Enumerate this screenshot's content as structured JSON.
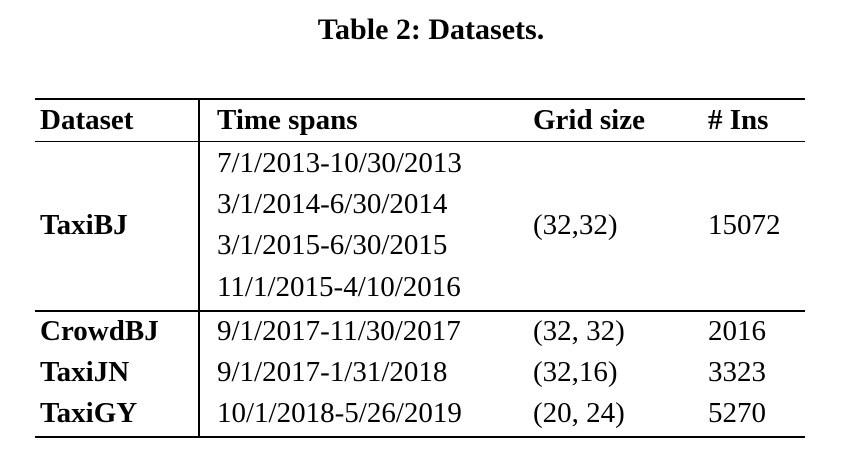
{
  "caption": "Table 2: Datasets.",
  "headers": {
    "dataset": "Dataset",
    "time_spans": "Time spans",
    "grid_size": "Grid size",
    "ins": "# Ins"
  },
  "rows": [
    {
      "dataset": "TaxiBJ",
      "time_spans": [
        "7/1/2013-10/30/2013",
        "3/1/2014-6/30/2014",
        "3/1/2015-6/30/2015",
        "11/1/2015-4/10/2016"
      ],
      "grid_size": "(32,32)",
      "ins": "15072"
    },
    {
      "dataset": "CrowdBJ",
      "time_spans": [
        "9/1/2017-11/30/2017"
      ],
      "grid_size": "(32, 32)",
      "ins": "2016"
    },
    {
      "dataset": "TaxiJN",
      "time_spans": [
        "9/1/2017-1/31/2018"
      ],
      "grid_size": "(32,16)",
      "ins": "3323"
    },
    {
      "dataset": "TaxiGY",
      "time_spans": [
        "10/1/2018-5/26/2019"
      ],
      "grid_size": "(20, 24)",
      "ins": "5270"
    }
  ]
}
